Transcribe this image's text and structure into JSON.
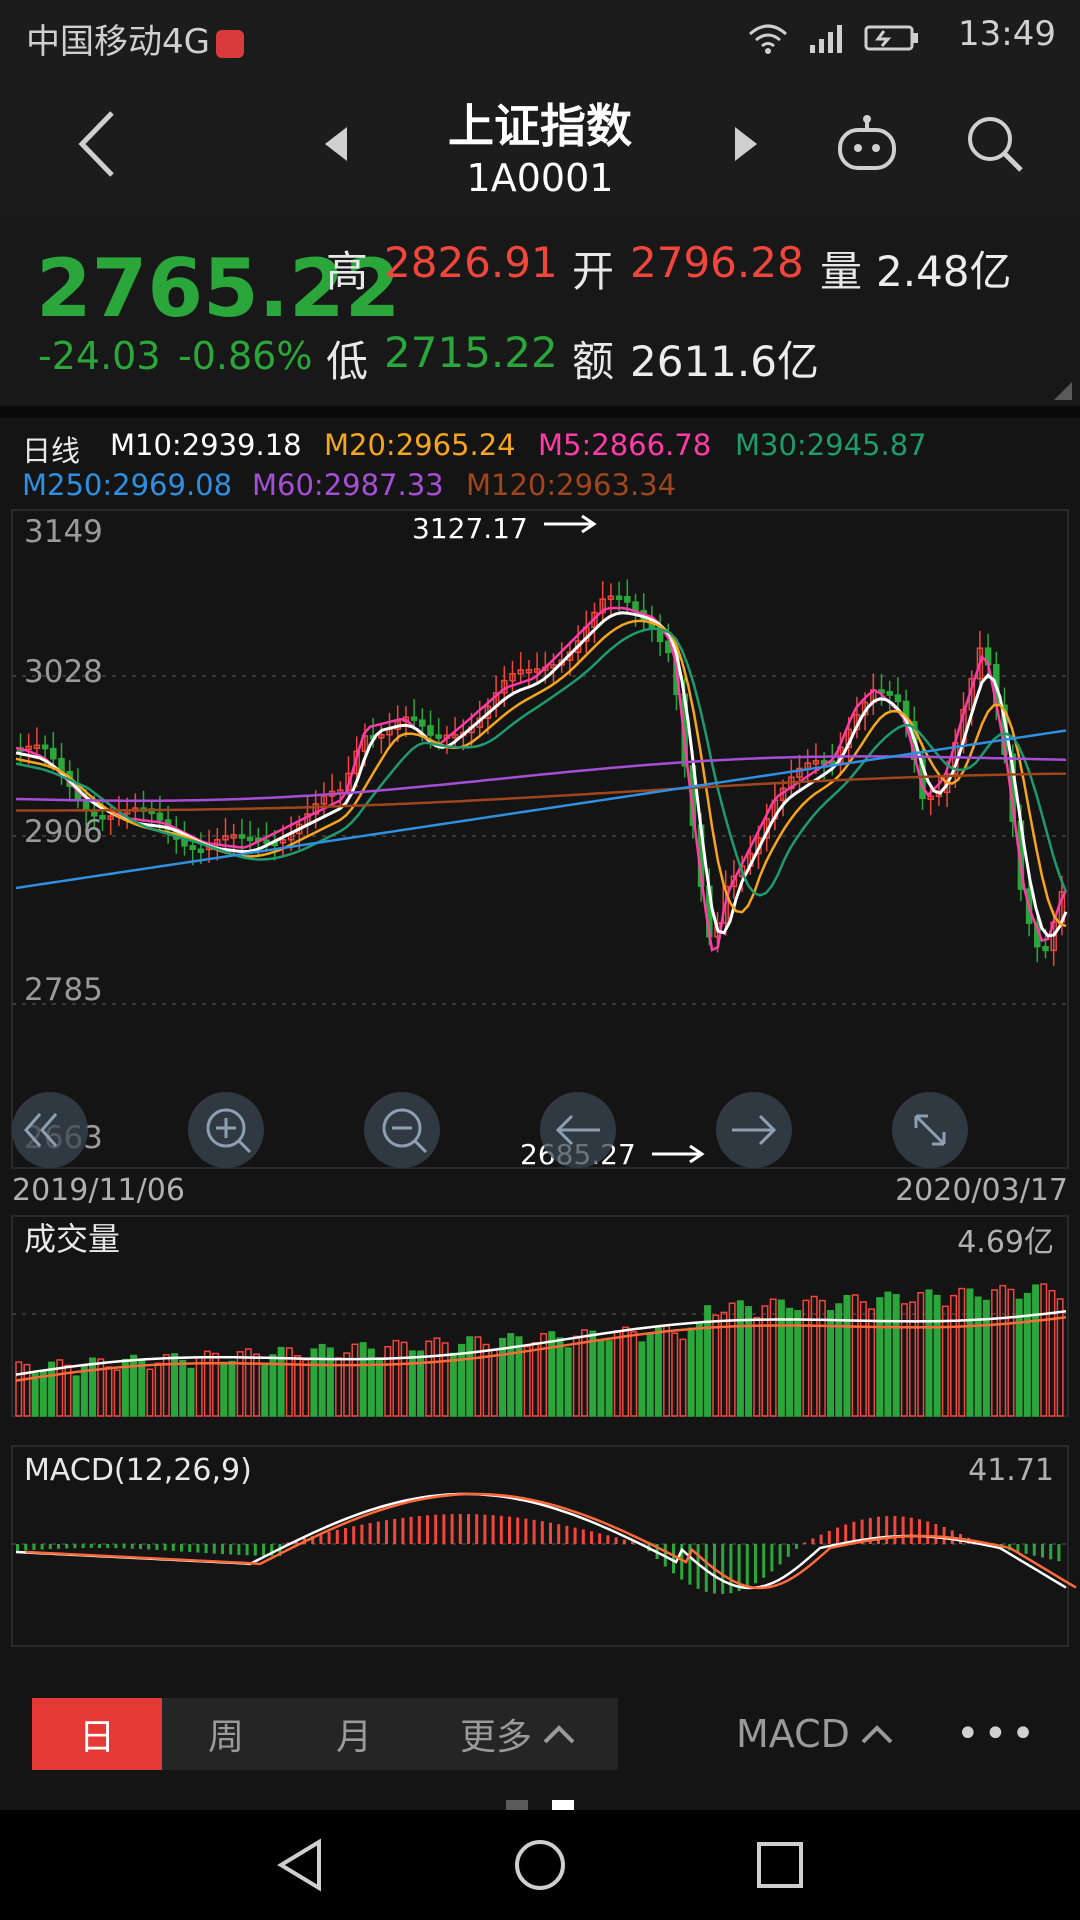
{
  "status_bar": {
    "carrier": "中国移动4G",
    "time": "13:49"
  },
  "header": {
    "title": "上证指数",
    "code": "1A0001"
  },
  "quote": {
    "price": "2765.22",
    "change": "-24.03",
    "change_pct": "-0.86%",
    "high_label": "高",
    "high": "2826.91",
    "open_label": "开",
    "open": "2796.28",
    "volume_label": "量",
    "volume": "2.48亿",
    "low_label": "低",
    "low": "2715.22",
    "amount_label": "额",
    "amount": "2611.6亿"
  },
  "legend": {
    "period": "日线",
    "m10": "M10:2939.18",
    "m20": "M20:2965.24",
    "m5": "M5:2866.78",
    "m30": "M30:2945.87",
    "m250": "M250:2969.08",
    "m60": "M60:2987.33",
    "m120": "M120:2963.34"
  },
  "colors": {
    "up": "#f0463c",
    "down": "#2aa63a",
    "m5": "#ff3ba7",
    "m10": "#ffffff",
    "m20": "#f7a51c",
    "m30": "#1e9b6e",
    "m60": "#a64fd6",
    "m120": "#a0461c",
    "m250": "#2f8fe0"
  },
  "chart": {
    "y_ticks": [
      "3149",
      "3028",
      "2906",
      "2785",
      "2663"
    ],
    "max_annotation": "3127.17",
    "min_annotation": "2685.27",
    "date_start": "2019/11/06",
    "date_end": "2020/03/17",
    "volume_title": "成交量",
    "volume_max": "4.69亿",
    "macd_title": "MACD(12,26,9)",
    "macd_value": "41.71"
  },
  "tabs": {
    "day": "日",
    "week": "周",
    "month": "月",
    "more": "更多",
    "indicator": "MACD",
    "dots": "•••"
  }
}
